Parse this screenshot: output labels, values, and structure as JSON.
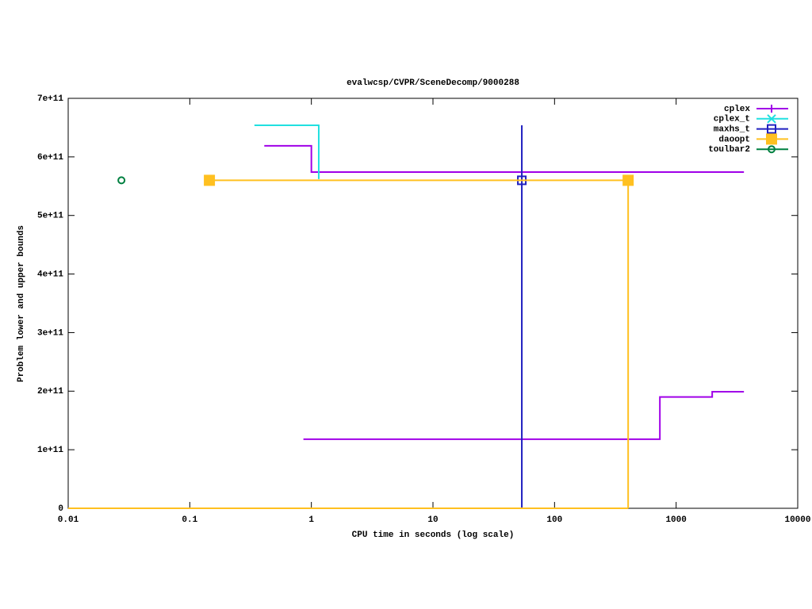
{
  "chart_data": {
    "type": "step-line",
    "title": "evalwcsp/CVPR/SceneDecomp/9000288",
    "x_label": "CPU time in seconds (log scale)",
    "y_label": "Problem lower and upper bounds",
    "x_log_scale": true,
    "xlim": [
      0.01,
      10000
    ],
    "xticks": [
      0.01,
      0.1,
      1,
      10,
      100,
      1000,
      10000
    ],
    "ylim": [
      0,
      700000000000
    ],
    "yticks": [
      0,
      {
        "value": 100000000000,
        "label": "1e+11"
      },
      {
        "value": 200000000000,
        "label": "2e+11"
      },
      {
        "value": 300000000000,
        "label": "3e+11"
      },
      {
        "value": 400000000000,
        "label": "4e+11"
      },
      {
        "value": 500000000000,
        "label": "5e+11"
      },
      {
        "value": 600000000000,
        "label": "6e+11"
      },
      {
        "value": 700000000000,
        "label": "7e+11"
      }
    ],
    "legend": "top-right",
    "series": [
      {
        "name": "cplex",
        "color": "#a000e8",
        "marker": "plus",
        "x": [
          0.41,
          1.0,
          3610,
          null,
          0.86,
          735,
          1980,
          3610
        ],
        "values": [
          619000000000,
          574000000000,
          574000000000,
          null,
          118000000000,
          190000000000,
          199000000000,
          199000000000
        ],
        "marker_x": [],
        "marker_values": []
      },
      {
        "name": "cplex_t",
        "color": "#20e0e0",
        "marker": "cross",
        "x": [
          0.34,
          1.15
        ],
        "values": [
          654000000000,
          562000000000
        ],
        "marker_x": [],
        "marker_values": []
      },
      {
        "name": "maxhs_t",
        "color": "#2020c0",
        "marker": "square",
        "x": [
          53.8,
          53.8
        ],
        "values": [
          654000000000,
          0
        ],
        "marker_x": [
          53.8
        ],
        "marker_values": [
          560000000000
        ]
      },
      {
        "name": "daoopt",
        "color": "#ffc020",
        "marker": "filled-square",
        "x": [
          0.01,
          403,
          null,
          0.145,
          403,
          403
        ],
        "values": [
          0,
          0,
          null,
          560000000000,
          560000000000,
          0
        ],
        "marker_x": [
          0.145,
          403
        ],
        "marker_values": [
          560000000000,
          560000000000
        ]
      },
      {
        "name": "toulbar2",
        "color": "#008040",
        "marker": "circle",
        "x": [],
        "values": [],
        "marker_x": [
          0.0274
        ],
        "marker_values": [
          560000000000
        ]
      }
    ]
  }
}
